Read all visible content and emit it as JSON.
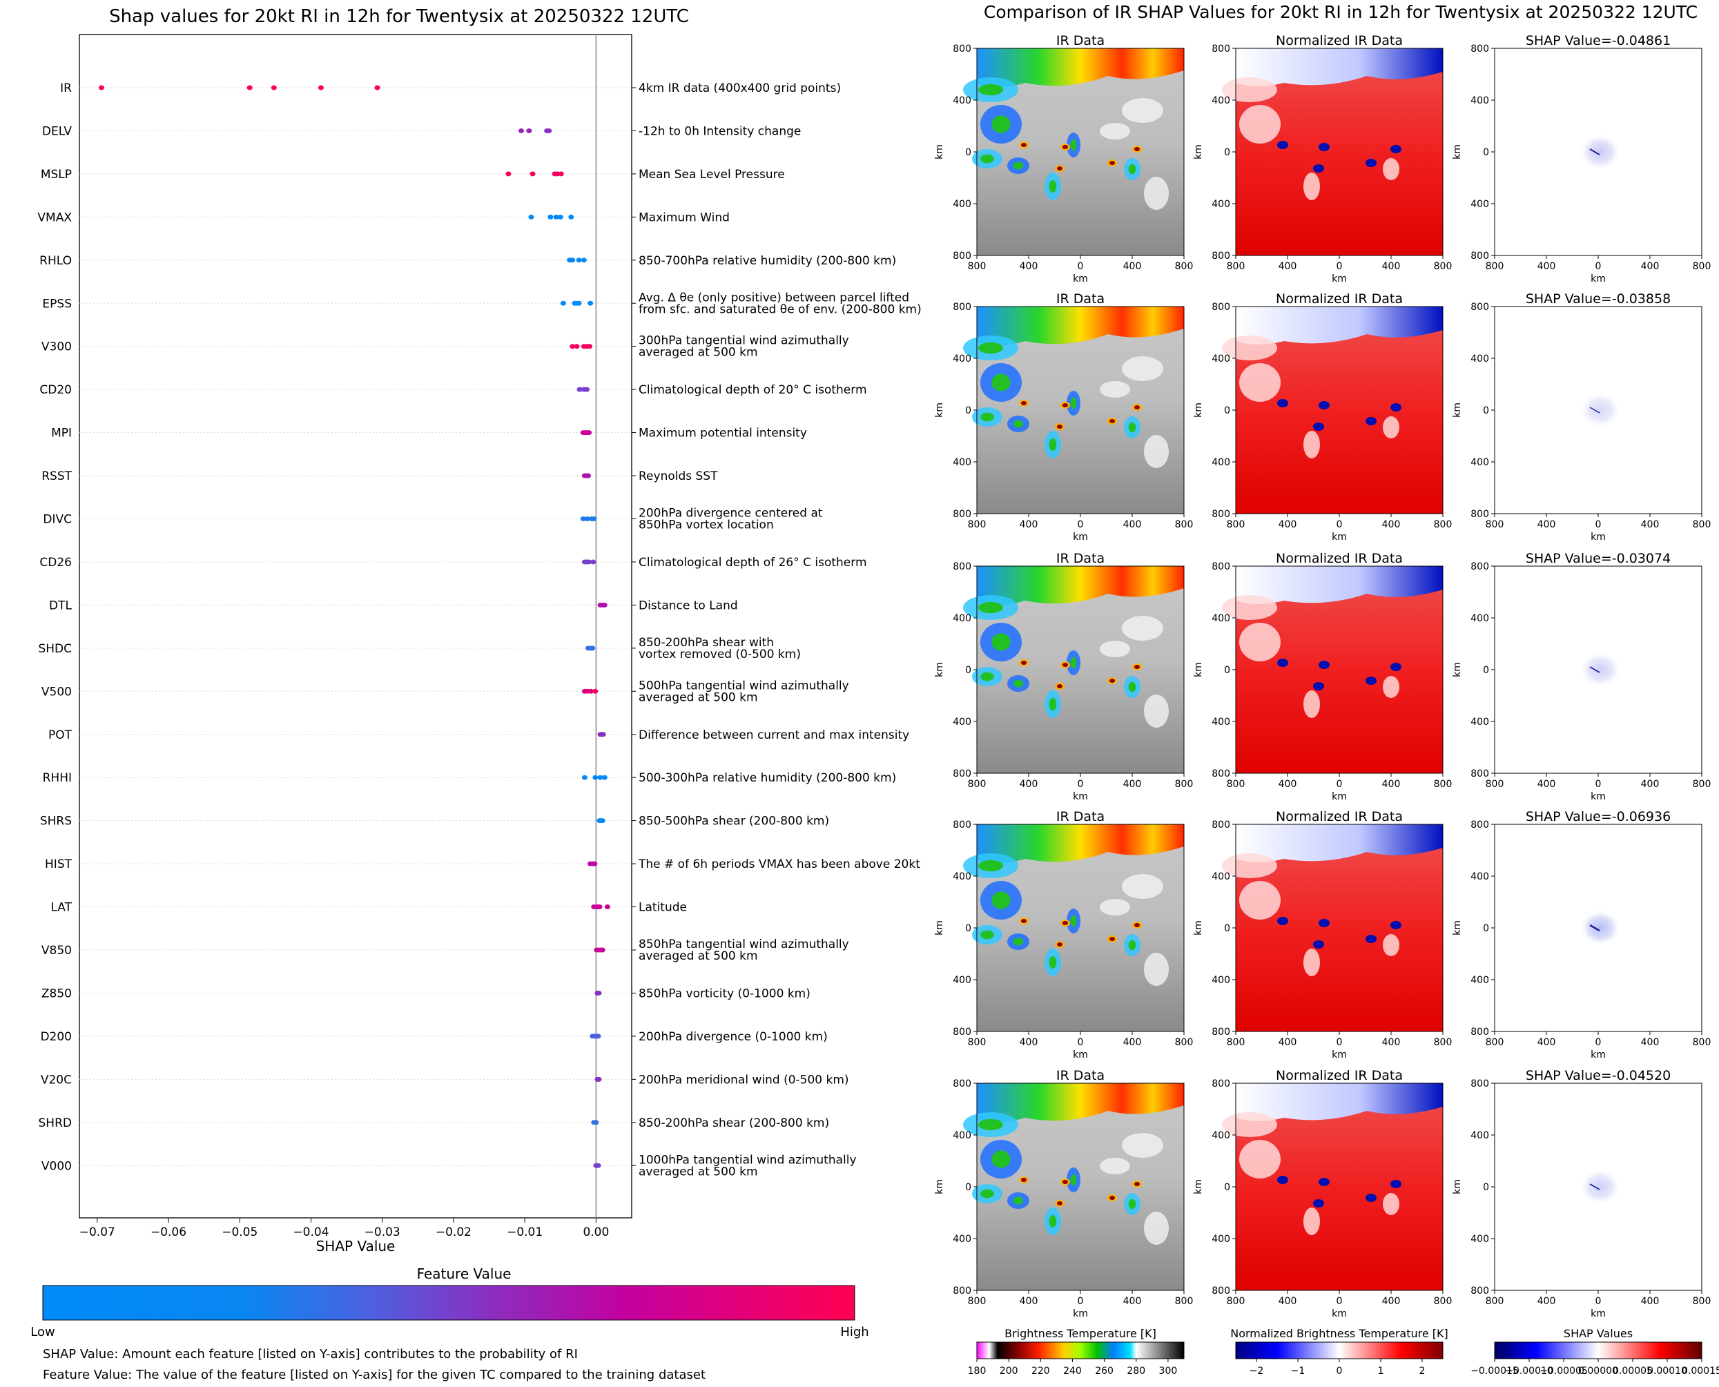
{
  "left_title": "Shap values for 20kt RI in 12h for Twentysix at 20250322 12UTC",
  "right_title": "Comparison of IR SHAP Values for 20kt RI in 12h for Twentysix at 20250322 12UTC",
  "colorbar": {
    "title": "Feature Value",
    "low_label": "Low",
    "high_label": "High",
    "colors": [
      "#008bfb",
      "#ff0052"
    ]
  },
  "notes": [
    "SHAP Value: Amount each feature [listed on Y-axis] contributes to the probability of RI",
    "Feature Value: The value of the feature [listed on Y-axis] for the given TC compared to the training dataset"
  ],
  "panel_column_titles": [
    "IR Data",
    "Normalized IR Data"
  ],
  "shap_titles": [
    "SHAP Value=-0.04861",
    "SHAP Value=-0.03858",
    "SHAP Value=-0.03074",
    "SHAP Value=-0.06936",
    "SHAP Value=-0.04520"
  ],
  "panel_axes": {
    "xlabel": "km",
    "ylabel": "km",
    "xticks": [
      "800",
      "400",
      "0",
      "400",
      "800"
    ],
    "yticks": [
      "800",
      "400",
      "0",
      "400",
      "800"
    ]
  },
  "colorbars": [
    {
      "title": "Brightness Temperature [K]",
      "ticks": [
        "180",
        "200",
        "220",
        "240",
        "260",
        "280",
        "300"
      ],
      "range": [
        180,
        310
      ]
    },
    {
      "title": "Normalized Brightness Temperature [K]",
      "ticks": [
        "−2",
        "−1",
        "0",
        "1",
        "2"
      ],
      "range": [
        -2.5,
        2.5
      ]
    },
    {
      "title": "SHAP Values",
      "ticks": [
        "−0.00015",
        "−0.00010",
        "−0.00005",
        "0.00000",
        "0.00005",
        "0.00010",
        "0.00015"
      ],
      "range": [
        -0.00015,
        0.00015
      ]
    }
  ],
  "chart_data": {
    "type": "scatter",
    "title": "Shap values for 20kt RI in 12h for Twentysix at 20250322 12UTC",
    "xlabel": "SHAP Value",
    "ylabel": "",
    "xlim": [
      -0.0725,
      0.005
    ],
    "xticks": [
      -0.07,
      -0.06,
      -0.05,
      -0.04,
      -0.03,
      -0.02,
      -0.01,
      0.0
    ],
    "xtick_labels": [
      "−0.07",
      "−0.06",
      "−0.05",
      "−0.04",
      "−0.03",
      "−0.02",
      "−0.01",
      "0.00"
    ],
    "grid": false,
    "features": [
      {
        "name": "IR",
        "description": "4km IR data (400x400 grid points)",
        "values": [
          -0.0694,
          -0.0486,
          -0.0452,
          -0.0386,
          -0.0307
        ],
        "fv": [
          1,
          1,
          1,
          1,
          1
        ]
      },
      {
        "name": "DELV",
        "description": "-12h to 0h Intensity change",
        "values": [
          -0.0105,
          -0.0094,
          -0.0069,
          -0.0066
        ],
        "fv": [
          0.6,
          0.6,
          0.55,
          0.55
        ]
      },
      {
        "name": "MSLP",
        "description": "Mean Sea Level Pressure",
        "values": [
          -0.0123,
          -0.0089,
          -0.0058,
          -0.0054,
          -0.0049
        ],
        "fv": [
          0.95,
          0.95,
          0.95,
          0.95,
          0.95
        ]
      },
      {
        "name": "VMAX",
        "description": "Maximum Wind",
        "values": [
          -0.0091,
          -0.0064,
          -0.0056,
          -0.005,
          -0.0035
        ],
        "fv": [
          0,
          0,
          0,
          0,
          0
        ]
      },
      {
        "name": "RHLO",
        "description": "850-700hPa relative humidity (200-800 km)",
        "values": [
          -0.0037,
          -0.0033,
          -0.0024,
          -0.0017
        ],
        "fv": [
          0.2,
          0.2,
          0.15,
          0.15
        ]
      },
      {
        "name": "EPSS",
        "description": "Avg. Δ θe (only positive) between parcel lifted\nfrom sfc. and saturated θe of env. (200-800 km)",
        "values": [
          -0.0046,
          -0.003,
          -0.0027,
          -0.0024,
          -0.0008
        ],
        "fv": [
          0.05,
          0.05,
          0.05,
          0.05,
          0.05
        ]
      },
      {
        "name": "V300",
        "description": "300hPa tangential wind azimuthally\naveraged at 500 km",
        "values": [
          -0.0033,
          -0.0027,
          -0.0017,
          -0.0013,
          -0.0009
        ],
        "fv": [
          0.95,
          0.95,
          0.95,
          0.95,
          0.95
        ]
      },
      {
        "name": "CD20",
        "description": "Climatological depth of 20° C isotherm",
        "values": [
          -0.0023,
          -0.0017,
          -0.0013
        ],
        "fv": [
          0.5,
          0.5,
          0.5
        ]
      },
      {
        "name": "MPI",
        "description": "Maximum potential intensity",
        "values": [
          -0.0018,
          -0.0015,
          -0.0012,
          -0.001
        ],
        "fv": [
          0.75,
          0.75,
          0.75,
          0.75
        ]
      },
      {
        "name": "RSST",
        "description": "Reynolds SST",
        "values": [
          -0.0016,
          -0.0014,
          -0.0012,
          -0.0011
        ],
        "fv": [
          0.65,
          0.65,
          0.65,
          0.65
        ]
      },
      {
        "name": "DIVC",
        "description": "200hPa divergence centered at\n850hPa vortex location",
        "values": [
          -0.0018,
          -0.0012,
          -0.0006,
          -0.0003
        ],
        "fv": [
          0.3,
          0.3,
          0.3,
          0.3
        ]
      },
      {
        "name": "CD26",
        "description": "Climatological depth of 26° C isotherm",
        "values": [
          -0.0016,
          -0.0013,
          -0.001,
          -0.0004
        ],
        "fv": [
          0.5,
          0.5,
          0.5,
          0.5
        ]
      },
      {
        "name": "DTL",
        "description": "Distance to Land",
        "values": [
          0.0006,
          0.0009,
          0.0012
        ],
        "fv": [
          0.65,
          0.65,
          0.65
        ]
      },
      {
        "name": "SHDC",
        "description": "850-200hPa shear with\nvortex removed (0-500 km)",
        "values": [
          -0.0011,
          -0.0007,
          -0.0005
        ],
        "fv": [
          0.35,
          0.35,
          0.35
        ]
      },
      {
        "name": "V500",
        "description": "500hPa tangential wind azimuthally\naveraged at 500 km",
        "values": [
          -0.0016,
          -0.0012,
          -0.0007,
          -0.0001
        ],
        "fv": [
          0.85,
          0.85,
          0.85,
          0.95
        ]
      },
      {
        "name": "POT",
        "description": "Difference between current and max intensity",
        "values": [
          0.0006,
          0.0008,
          0.001
        ],
        "fv": [
          0.55,
          0.55,
          0.55
        ]
      },
      {
        "name": "RHHI",
        "description": "500-300hPa relative humidity (200-800 km)",
        "values": [
          -0.0016,
          -0.0001,
          0.0006,
          0.0012
        ],
        "fv": [
          0.15,
          0.15,
          0.15,
          0.15
        ]
      },
      {
        "name": "SHRS",
        "description": "850-500hPa shear (200-800 km)",
        "values": [
          0.0005,
          0.0007,
          0.0009
        ],
        "fv": [
          0.05,
          0.05,
          0.05
        ]
      },
      {
        "name": "HIST",
        "description": "The # of 6h periods VMAX has been above 20kt",
        "values": [
          -0.0008,
          -0.0004,
          -0.0002
        ],
        "fv": [
          0.7,
          0.7,
          0.7
        ]
      },
      {
        "name": "LAT",
        "description": "Latitude",
        "values": [
          -0.0003,
          0.0002,
          0.0005,
          0.0016
        ],
        "fv": [
          0.75,
          0.75,
          0.75,
          0.75
        ]
      },
      {
        "name": "V850",
        "description": "850hPa tangential wind azimuthally\naveraged at 500 km",
        "values": [
          0.0001,
          0.0004,
          0.0007,
          0.0009
        ],
        "fv": [
          0.75,
          0.75,
          0.75,
          0.75
        ]
      },
      {
        "name": "Z850",
        "description": "850hPa vorticity (0-1000 km)",
        "values": [
          0.0002,
          0.0004
        ],
        "fv": [
          0.55,
          0.55
        ]
      },
      {
        "name": "D200",
        "description": "200hPa divergence (0-1000 km)",
        "values": [
          -0.0005,
          -0.0002,
          0.0001,
          0.0003
        ],
        "fv": [
          0.4,
          0.4,
          0.4,
          0.4
        ]
      },
      {
        "name": "V20C",
        "description": "200hPa meridional wind (0-500 km)",
        "values": [
          0.0002,
          0.0004
        ],
        "fv": [
          0.55,
          0.55
        ]
      },
      {
        "name": "SHRD",
        "description": "850-200hPa shear (200-800 km)",
        "values": [
          -0.0003,
          0.0
        ],
        "fv": [
          0.35,
          0.35
        ]
      },
      {
        "name": "V000",
        "description": "1000hPa tangential wind azimuthally\naveraged at 500 km",
        "values": [
          0.0,
          0.0003
        ],
        "fv": [
          0.5,
          0.5
        ]
      }
    ]
  }
}
